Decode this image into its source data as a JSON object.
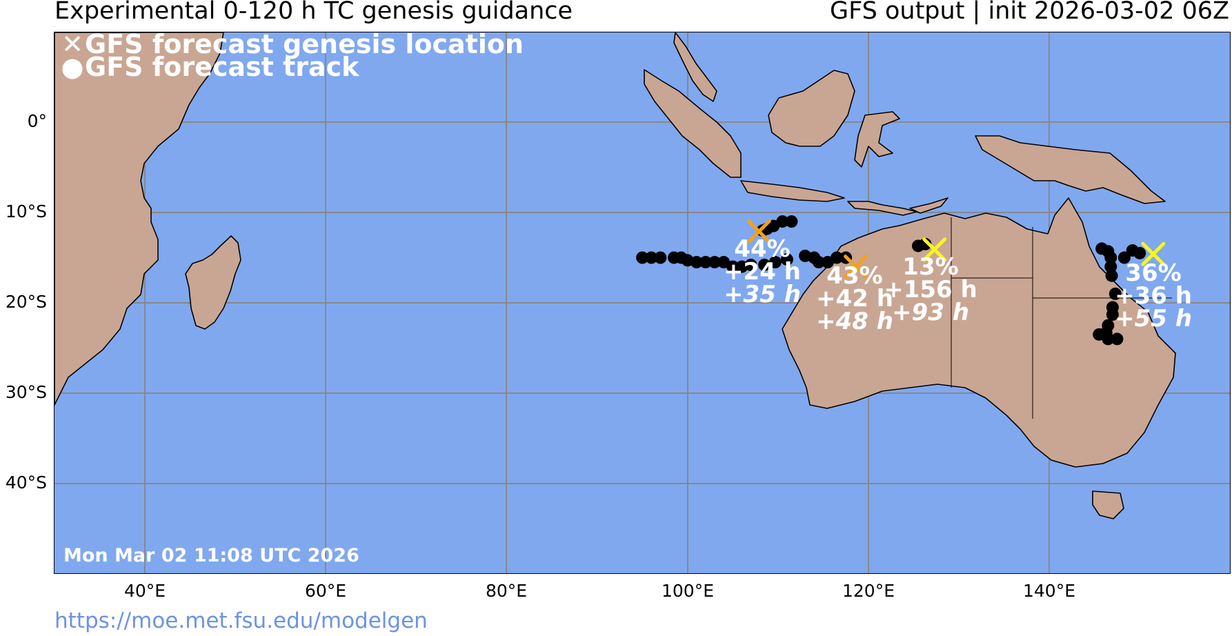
{
  "header": {
    "title": "Experimental 0-120 h TC genesis guidance",
    "subtitle": "GFS output | init 2026-03-02 06Z"
  },
  "map": {
    "legend": [
      {
        "icon": "x-marker-icon",
        "label": "GFS forecast genesis location"
      },
      {
        "icon": "dot-marker-icon",
        "label": "GFS forecast track"
      }
    ],
    "timestamp": "Mon Mar 02 11:08 UTC 2026",
    "lat_ticks": [
      "0°",
      "10°S",
      "20°S",
      "30°S",
      "40°S"
    ],
    "lon_ticks": [
      "40°E",
      "60°E",
      "80°E",
      "100°E",
      "120°E",
      "140°E"
    ],
    "colors": {
      "ocean": "#80a8ef",
      "land": "#c9a693",
      "track": "#000000",
      "high_prob": "#f5a01a",
      "low_prob": "#f7f71a",
      "grid": "#888888"
    },
    "storms": [
      {
        "name": "storm-1",
        "lon": 107.9,
        "lat": -12.1,
        "color": "#f5a01a",
        "probability": "44%",
        "genesis_time": "+24 h",
        "secondary_time": "+35 h"
      },
      {
        "name": "storm-2",
        "lon": 118.6,
        "lat": -16.0,
        "color": "#f5a01a",
        "probability": "43%",
        "genesis_time": "+42 h",
        "secondary_time": "+48 h"
      },
      {
        "name": "storm-3",
        "lon": 127.3,
        "lat": -14.1,
        "color": "#f7f71a",
        "probability": "13%",
        "genesis_time": "+156 h",
        "secondary_time": "+93 h"
      },
      {
        "name": "storm-4",
        "lon": 151.5,
        "lat": -14.6,
        "color": "#f7f71a",
        "probability": "36%",
        "genesis_time": "+36 h",
        "secondary_time": "+55 h"
      }
    ]
  },
  "footer": {
    "url": "https://moe.met.fsu.edu/modelgen"
  }
}
